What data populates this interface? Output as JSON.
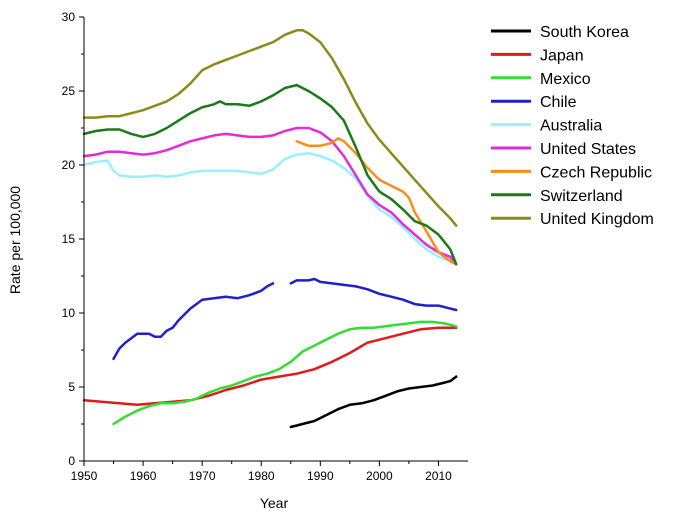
{
  "chart_data": {
    "type": "line",
    "title": "",
    "xlabel": "Year",
    "ylabel": "Rate per 100,000",
    "xlim": [
      1950,
      2015
    ],
    "ylim": [
      0,
      30
    ],
    "x_ticks": [
      1950,
      1960,
      1970,
      1980,
      1990,
      2000,
      2010
    ],
    "y_ticks": [
      0,
      5,
      10,
      15,
      20,
      25,
      30
    ],
    "x_tick_labels": [
      "1950",
      "1960",
      "1970",
      "1980",
      "1990",
      "2000",
      "2010"
    ],
    "y_tick_labels": [
      "0",
      "5",
      "10",
      "15",
      "20",
      "25",
      "30"
    ],
    "grid": false,
    "legend_position": "right",
    "series": [
      {
        "name": "South Korea",
        "color": "#000000",
        "points": [
          [
            1985,
            2.3
          ],
          [
            1987,
            2.5
          ],
          [
            1989,
            2.7
          ],
          [
            1991,
            3.1
          ],
          [
            1993,
            3.5
          ],
          [
            1995,
            3.8
          ],
          [
            1997,
            3.9
          ],
          [
            1999,
            4.1
          ],
          [
            2001,
            4.4
          ],
          [
            2003,
            4.7
          ],
          [
            2005,
            4.9
          ],
          [
            2007,
            5.0
          ],
          [
            2009,
            5.1
          ],
          [
            2011,
            5.3
          ],
          [
            2012,
            5.4
          ],
          [
            2013,
            5.7
          ]
        ]
      },
      {
        "name": "Japan",
        "color": "#e31a1c",
        "points": [
          [
            1950,
            4.1
          ],
          [
            1953,
            4.0
          ],
          [
            1956,
            3.9
          ],
          [
            1959,
            3.8
          ],
          [
            1962,
            3.9
          ],
          [
            1965,
            4.0
          ],
          [
            1968,
            4.1
          ],
          [
            1971,
            4.4
          ],
          [
            1974,
            4.8
          ],
          [
            1977,
            5.1
          ],
          [
            1980,
            5.5
          ],
          [
            1983,
            5.7
          ],
          [
            1986,
            5.9
          ],
          [
            1989,
            6.2
          ],
          [
            1992,
            6.7
          ],
          [
            1995,
            7.3
          ],
          [
            1998,
            8.0
          ],
          [
            2001,
            8.3
          ],
          [
            2004,
            8.6
          ],
          [
            2007,
            8.9
          ],
          [
            2010,
            9.0
          ],
          [
            2013,
            9.0
          ]
        ]
      },
      {
        "name": "Mexico",
        "color": "#33dd33",
        "points": [
          [
            1955,
            2.5
          ],
          [
            1957,
            3.0
          ],
          [
            1959,
            3.4
          ],
          [
            1961,
            3.7
          ],
          [
            1963,
            3.9
          ],
          [
            1965,
            3.9
          ],
          [
            1967,
            4.0
          ],
          [
            1969,
            4.2
          ],
          [
            1971,
            4.6
          ],
          [
            1973,
            4.9
          ],
          [
            1975,
            5.1
          ],
          [
            1977,
            5.4
          ],
          [
            1979,
            5.7
          ],
          [
            1981,
            5.9
          ],
          [
            1983,
            6.2
          ],
          [
            1985,
            6.7
          ],
          [
            1987,
            7.4
          ],
          [
            1989,
            7.8
          ],
          [
            1991,
            8.2
          ],
          [
            1993,
            8.6
          ],
          [
            1995,
            8.9
          ],
          [
            1997,
            9.0
          ],
          [
            1999,
            9.0
          ],
          [
            2001,
            9.1
          ],
          [
            2003,
            9.2
          ],
          [
            2005,
            9.3
          ],
          [
            2007,
            9.4
          ],
          [
            2009,
            9.4
          ],
          [
            2011,
            9.3
          ],
          [
            2013,
            9.1
          ]
        ]
      },
      {
        "name": "Chile",
        "color": "#1f1fcc",
        "points": [
          [
            1955,
            6.9
          ],
          [
            1956,
            7.6
          ],
          [
            1957,
            8.0
          ],
          [
            1958,
            8.3
          ],
          [
            1959,
            8.6
          ],
          [
            1960,
            8.6
          ],
          [
            1961,
            8.6
          ],
          [
            1962,
            8.4
          ],
          [
            1963,
            8.4
          ],
          [
            1964,
            8.8
          ],
          [
            1965,
            9.0
          ],
          [
            1966,
            9.5
          ],
          [
            1967,
            9.9
          ],
          [
            1968,
            10.3
          ],
          [
            1970,
            10.9
          ],
          [
            1972,
            11.0
          ],
          [
            1974,
            11.1
          ],
          [
            1976,
            11.0
          ],
          [
            1978,
            11.2
          ],
          [
            1980,
            11.5
          ],
          [
            1981,
            11.8
          ],
          [
            1982,
            12.0
          ],
          null,
          [
            1985,
            12.0
          ],
          [
            1986,
            12.2
          ],
          [
            1988,
            12.2
          ],
          [
            1989,
            12.3
          ],
          [
            1990,
            12.1
          ],
          [
            1992,
            12.0
          ],
          [
            1994,
            11.9
          ],
          [
            1996,
            11.8
          ],
          [
            1998,
            11.6
          ],
          [
            2000,
            11.3
          ],
          [
            2002,
            11.1
          ],
          [
            2004,
            10.9
          ],
          [
            2006,
            10.6
          ],
          [
            2008,
            10.5
          ],
          [
            2010,
            10.5
          ],
          [
            2012,
            10.3
          ],
          [
            2013,
            10.2
          ]
        ]
      },
      {
        "name": "Australia",
        "color": "#99eeff",
        "points": [
          [
            1950,
            20.0
          ],
          [
            1952,
            20.2
          ],
          [
            1954,
            20.3
          ],
          [
            1955,
            19.6
          ],
          [
            1956,
            19.3
          ],
          [
            1958,
            19.2
          ],
          [
            1960,
            19.2
          ],
          [
            1962,
            19.3
          ],
          [
            1964,
            19.2
          ],
          [
            1966,
            19.3
          ],
          [
            1968,
            19.5
          ],
          [
            1970,
            19.6
          ],
          [
            1972,
            19.6
          ],
          [
            1974,
            19.6
          ],
          [
            1976,
            19.6
          ],
          [
            1978,
            19.5
          ],
          [
            1980,
            19.4
          ],
          [
            1982,
            19.7
          ],
          [
            1984,
            20.4
          ],
          [
            1986,
            20.7
          ],
          [
            1988,
            20.8
          ],
          [
            1990,
            20.6
          ],
          [
            1992,
            20.3
          ],
          [
            1994,
            19.8
          ],
          [
            1996,
            19.1
          ],
          [
            1998,
            17.9
          ],
          [
            2000,
            17.0
          ],
          [
            2002,
            16.5
          ],
          [
            2004,
            15.8
          ],
          [
            2006,
            15.0
          ],
          [
            2008,
            14.3
          ],
          [
            2010,
            13.8
          ],
          [
            2012,
            13.5
          ],
          [
            2013,
            13.3
          ]
        ]
      },
      {
        "name": "United States",
        "color": "#e22bd9",
        "points": [
          [
            1950,
            20.6
          ],
          [
            1952,
            20.7
          ],
          [
            1954,
            20.9
          ],
          [
            1956,
            20.9
          ],
          [
            1958,
            20.8
          ],
          [
            1960,
            20.7
          ],
          [
            1962,
            20.8
          ],
          [
            1964,
            21.0
          ],
          [
            1966,
            21.3
          ],
          [
            1968,
            21.6
          ],
          [
            1970,
            21.8
          ],
          [
            1972,
            22.0
          ],
          [
            1974,
            22.1
          ],
          [
            1976,
            22.0
          ],
          [
            1978,
            21.9
          ],
          [
            1980,
            21.9
          ],
          [
            1982,
            22.0
          ],
          [
            1984,
            22.3
          ],
          [
            1986,
            22.5
          ],
          [
            1988,
            22.5
          ],
          [
            1990,
            22.2
          ],
          [
            1992,
            21.6
          ],
          [
            1994,
            20.6
          ],
          [
            1996,
            19.3
          ],
          [
            1998,
            18.0
          ],
          [
            2000,
            17.3
          ],
          [
            2002,
            16.8
          ],
          [
            2004,
            16.0
          ],
          [
            2006,
            15.3
          ],
          [
            2008,
            14.6
          ],
          [
            2010,
            14.1
          ],
          [
            2012,
            13.8
          ],
          [
            2013,
            13.3
          ]
        ]
      },
      {
        "name": "Czech Republic",
        "color": "#ff8c1a",
        "points": [
          [
            1986,
            21.6
          ],
          [
            1988,
            21.3
          ],
          [
            1990,
            21.3
          ],
          [
            1992,
            21.5
          ],
          [
            1993,
            21.8
          ],
          [
            1994,
            21.6
          ],
          [
            1996,
            20.8
          ],
          [
            1998,
            19.8
          ],
          [
            2000,
            19.0
          ],
          [
            2002,
            18.6
          ],
          [
            2004,
            18.2
          ],
          [
            2005,
            17.8
          ],
          [
            2006,
            16.8
          ],
          [
            2008,
            15.5
          ],
          [
            2010,
            14.1
          ],
          [
            2012,
            13.5
          ],
          [
            2013,
            13.3
          ]
        ]
      },
      {
        "name": "Switzerland",
        "color": "#1a7a1a",
        "points": [
          [
            1950,
            22.1
          ],
          [
            1952,
            22.3
          ],
          [
            1954,
            22.4
          ],
          [
            1956,
            22.4
          ],
          [
            1958,
            22.1
          ],
          [
            1960,
            21.9
          ],
          [
            1962,
            22.1
          ],
          [
            1964,
            22.5
          ],
          [
            1966,
            23.0
          ],
          [
            1968,
            23.5
          ],
          [
            1970,
            23.9
          ],
          [
            1972,
            24.1
          ],
          [
            1973,
            24.3
          ],
          [
            1974,
            24.1
          ],
          [
            1976,
            24.1
          ],
          [
            1978,
            24.0
          ],
          [
            1980,
            24.3
          ],
          [
            1982,
            24.7
          ],
          [
            1984,
            25.2
          ],
          [
            1986,
            25.4
          ],
          [
            1988,
            25.0
          ],
          [
            1990,
            24.5
          ],
          [
            1992,
            23.9
          ],
          [
            1994,
            23.0
          ],
          [
            1996,
            21.2
          ],
          [
            1998,
            19.3
          ],
          [
            2000,
            18.2
          ],
          [
            2002,
            17.7
          ],
          [
            2004,
            17.0
          ],
          [
            2006,
            16.2
          ],
          [
            2008,
            15.9
          ],
          [
            2010,
            15.3
          ],
          [
            2012,
            14.3
          ],
          [
            2013,
            13.3
          ]
        ]
      },
      {
        "name": "United Kingdom",
        "color": "#8b8b1a",
        "points": [
          [
            1950,
            23.2
          ],
          [
            1952,
            23.2
          ],
          [
            1954,
            23.3
          ],
          [
            1956,
            23.3
          ],
          [
            1958,
            23.5
          ],
          [
            1960,
            23.7
          ],
          [
            1962,
            24.0
          ],
          [
            1964,
            24.3
          ],
          [
            1966,
            24.8
          ],
          [
            1968,
            25.5
          ],
          [
            1970,
            26.4
          ],
          [
            1972,
            26.8
          ],
          [
            1974,
            27.1
          ],
          [
            1976,
            27.4
          ],
          [
            1978,
            27.7
          ],
          [
            1980,
            28.0
          ],
          [
            1982,
            28.3
          ],
          [
            1984,
            28.8
          ],
          [
            1986,
            29.1
          ],
          [
            1987,
            29.1
          ],
          [
            1988,
            28.9
          ],
          [
            1990,
            28.3
          ],
          [
            1992,
            27.2
          ],
          [
            1994,
            25.8
          ],
          [
            1996,
            24.2
          ],
          [
            1998,
            22.8
          ],
          [
            2000,
            21.7
          ],
          [
            2002,
            20.8
          ],
          [
            2004,
            19.9
          ],
          [
            2006,
            19.0
          ],
          [
            2008,
            18.1
          ],
          [
            2010,
            17.2
          ],
          [
            2012,
            16.4
          ],
          [
            2013,
            15.9
          ]
        ]
      }
    ]
  }
}
